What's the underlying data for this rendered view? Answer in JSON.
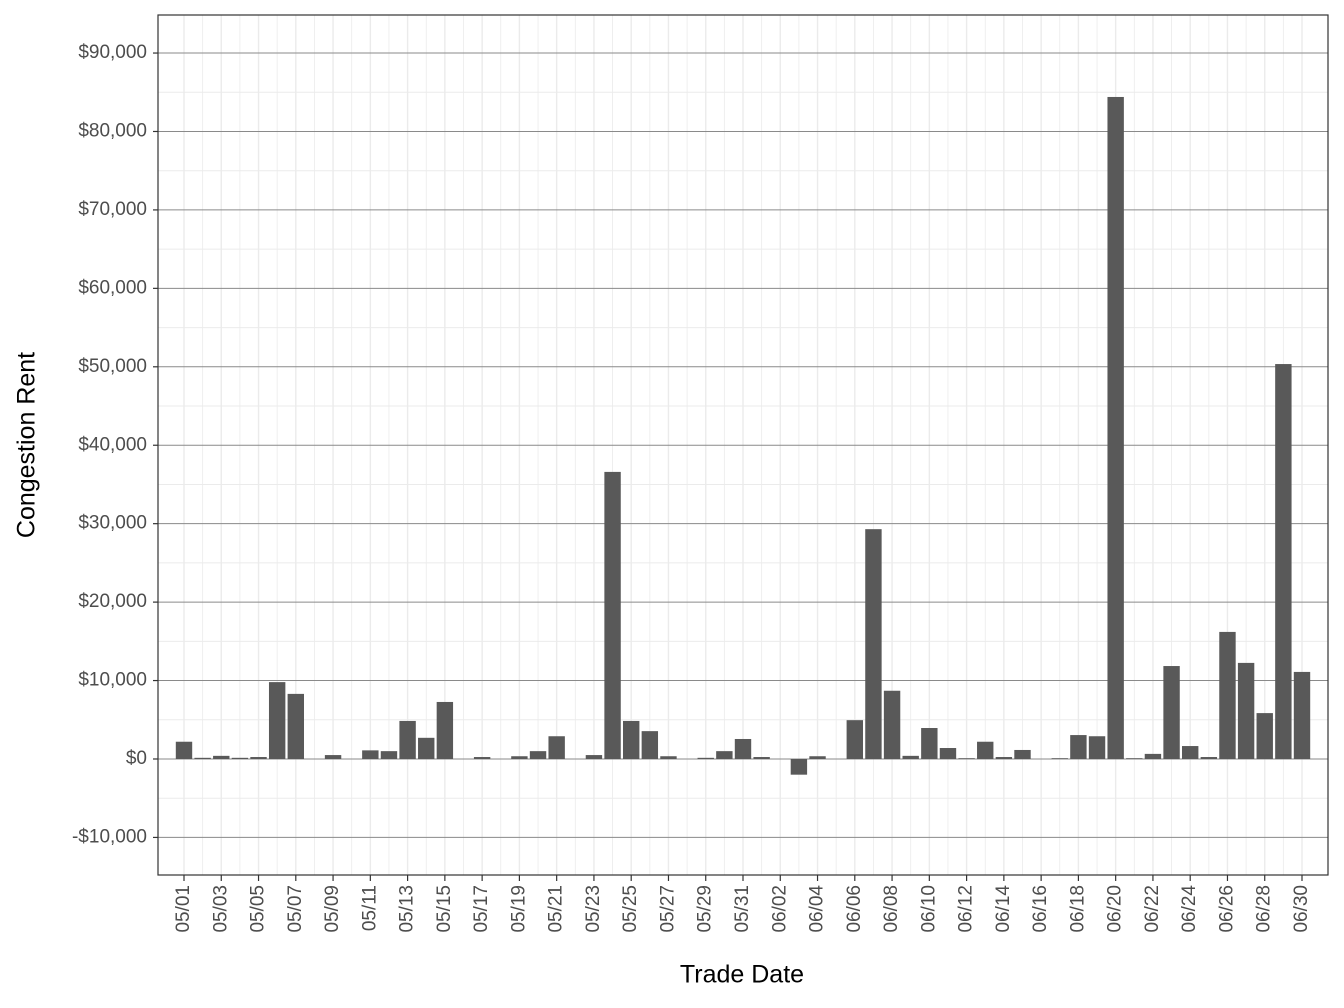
{
  "chart_data": {
    "type": "bar",
    "x_label": "Trade Date",
    "y_label": "Congestion Rent",
    "categories": [
      "05/01",
      null,
      "05/03",
      null,
      "05/05",
      null,
      "05/07",
      null,
      "05/09",
      null,
      "05/11",
      null,
      "05/13",
      null,
      "05/15",
      null,
      "05/17",
      null,
      "05/19",
      null,
      "05/21",
      null,
      "05/23",
      null,
      "05/25",
      null,
      "05/27",
      null,
      "05/29",
      null,
      "05/31",
      null,
      "06/02",
      null,
      "06/04",
      null,
      "06/06",
      null,
      "06/08",
      null,
      "06/10",
      null,
      "06/12",
      null,
      "06/14",
      null,
      "06/16",
      null,
      "06/18",
      null,
      "06/20",
      null,
      "06/22",
      null,
      "06/24",
      null,
      "06/26",
      null,
      "06/28",
      null,
      "06/30"
    ],
    "values": [
      2200,
      150,
      400,
      150,
      250,
      9800,
      8300,
      0,
      500,
      0,
      1100,
      1000,
      4850,
      2700,
      7270,
      0,
      250,
      0,
      350,
      1000,
      2900,
      0,
      500,
      36600,
      4850,
      3550,
      350,
      0,
      150,
      1000,
      2550,
      250,
      0,
      -2000,
      350,
      0,
      4950,
      29300,
      8700,
      400,
      3950,
      1400,
      100,
      2200,
      250,
      1150,
      0,
      100,
      3050,
      2900,
      84400,
      100,
      650,
      11850,
      1650,
      250,
      16200,
      12250,
      5850,
      50350,
      11100
    ],
    "color": "#595959",
    "ylim": [
      -14790,
      94850
    ],
    "yticks": [
      {
        "value": -10000,
        "label": "-$10,000"
      },
      {
        "value": 0,
        "label": "$0"
      },
      {
        "value": 10000,
        "label": "$10,000"
      },
      {
        "value": 20000,
        "label": "$20,000"
      },
      {
        "value": 30000,
        "label": "$30,000"
      },
      {
        "value": 40000,
        "label": "$40,000"
      },
      {
        "value": 50000,
        "label": "$50,000"
      },
      {
        "value": 60000,
        "label": "$60,000"
      },
      {
        "value": 70000,
        "label": "$70,000"
      },
      {
        "value": 80000,
        "label": "$80,000"
      },
      {
        "value": 90000,
        "label": "$90,000"
      }
    ],
    "grid": true
  }
}
